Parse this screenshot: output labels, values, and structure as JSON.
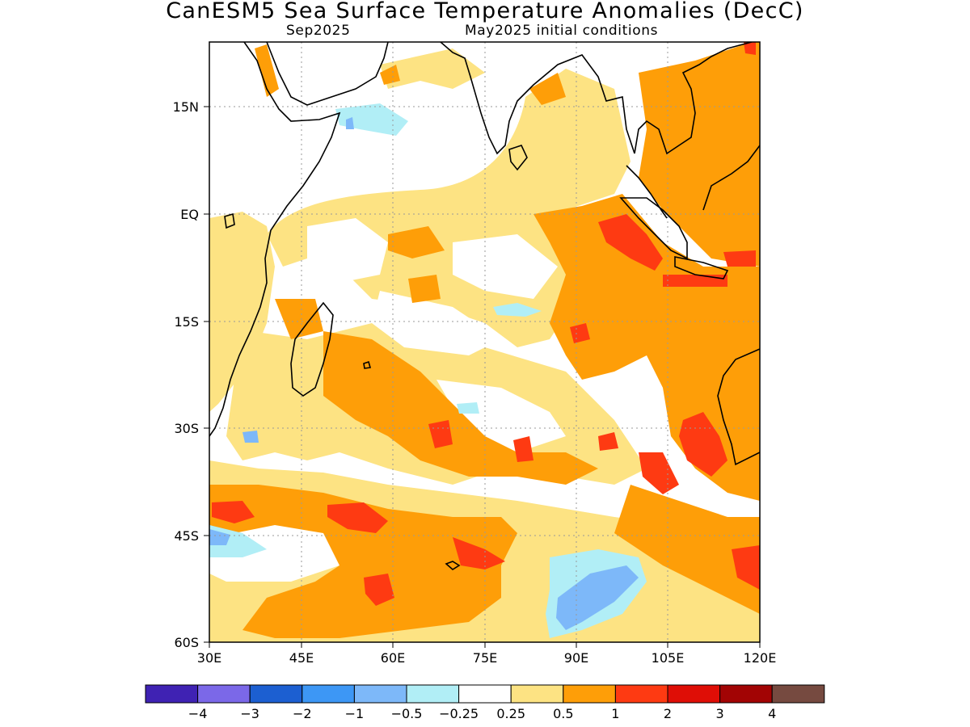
{
  "title": "CanESM5 Sea Surface Temperature Anomalies (DecC)",
  "valid_month": "Sep2025",
  "init_label": "May2025 initial conditions",
  "axes": {
    "lat_ticks": [
      "15N",
      "EQ",
      "15S",
      "30S",
      "45S",
      "60S"
    ],
    "lon_ticks": [
      "30E",
      "45E",
      "60E",
      "75E",
      "90E",
      "105E",
      "120E"
    ],
    "lat_range": [
      -60,
      24
    ],
    "lon_range": [
      30,
      120
    ]
  },
  "colorbar": {
    "colors": [
      "#3f22b3",
      "#7b68e8",
      "#1c5fd1",
      "#3d97f5",
      "#7db8f9",
      "#b1eef6",
      "#ffffff",
      "#fde383",
      "#fe9e08",
      "#fe3a12",
      "#df0e06",
      "#a20404",
      "#764a40"
    ],
    "labels": [
      "−4",
      "−3",
      "−2",
      "−1",
      "−0.5",
      "−0.25",
      "0.25",
      "0.5",
      "1",
      "2",
      "3",
      "4"
    ]
  },
  "legend_colors": {
    "land_outline": "#000000",
    "grid": "#999999"
  }
}
